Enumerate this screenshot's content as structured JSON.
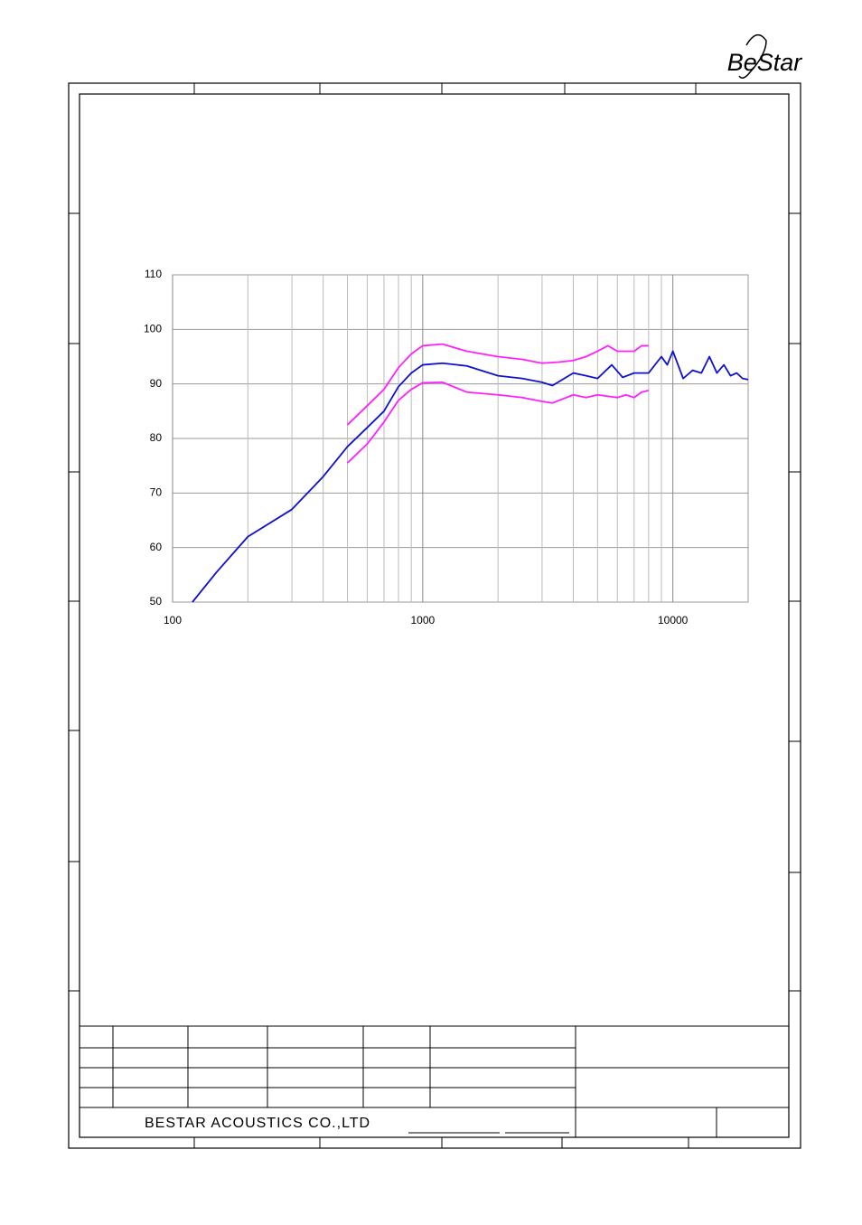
{
  "logo": "BeStar",
  "chart_data": {
    "type": "line",
    "xlim": [
      100,
      20000
    ],
    "xticks": [
      100,
      1000,
      10000
    ],
    "log_x": true,
    "ylim": [
      50,
      110
    ],
    "yticks": [
      50,
      60,
      70,
      80,
      90,
      100,
      110
    ],
    "grid": true,
    "series": [
      {
        "color": "#1010d0",
        "x": [
          120,
          150,
          200,
          300,
          400,
          500,
          600,
          700,
          800,
          900,
          1000,
          1200,
          1500,
          2000,
          2500,
          3000,
          3300,
          4000,
          4500,
          5000,
          5700,
          6300,
          7000,
          8000,
          9000,
          9500,
          10000,
          11000,
          12000,
          13000,
          14000,
          15000,
          16000,
          17000,
          18000,
          19000,
          20000
        ],
        "values": [
          50,
          55.5,
          62,
          67,
          73,
          78.5,
          82,
          85,
          89.5,
          92,
          93.5,
          93.8,
          93.3,
          91.5,
          91,
          90.3,
          89.7,
          92,
          91.5,
          91,
          93.5,
          91.2,
          92,
          92,
          95,
          93.5,
          96,
          91,
          92.5,
          92,
          95,
          92,
          93.5,
          91.5,
          92,
          91,
          90.8
        ]
      },
      {
        "color": "#ff20ff",
        "x": [
          500,
          600,
          700,
          800,
          900,
          1000,
          1200,
          1500,
          2000,
          2500,
          3000,
          3500,
          4000,
          4500,
          5000,
          5500,
          6000,
          7000,
          7500,
          8000
        ],
        "values": [
          82.5,
          86,
          89,
          93,
          95.5,
          97,
          97.3,
          96,
          95,
          94.5,
          93.8,
          94,
          94.3,
          95,
          96,
          97,
          96,
          96,
          97,
          97
        ]
      },
      {
        "color": "#ff20ff",
        "x": [
          500,
          600,
          700,
          800,
          900,
          1000,
          1200,
          1500,
          2000,
          2500,
          3000,
          3300,
          4000,
          4500,
          5000,
          6000,
          6500,
          7000,
          7500,
          8000
        ],
        "values": [
          75.5,
          79,
          83,
          87,
          89,
          90.2,
          90.3,
          88.5,
          88,
          87.5,
          86.8,
          86.5,
          88,
          87.5,
          88,
          87.5,
          88,
          87.5,
          88.5,
          88.8
        ]
      }
    ]
  },
  "footer": {
    "company": "BESTAR ACOUSTICS CO.,LTD"
  }
}
